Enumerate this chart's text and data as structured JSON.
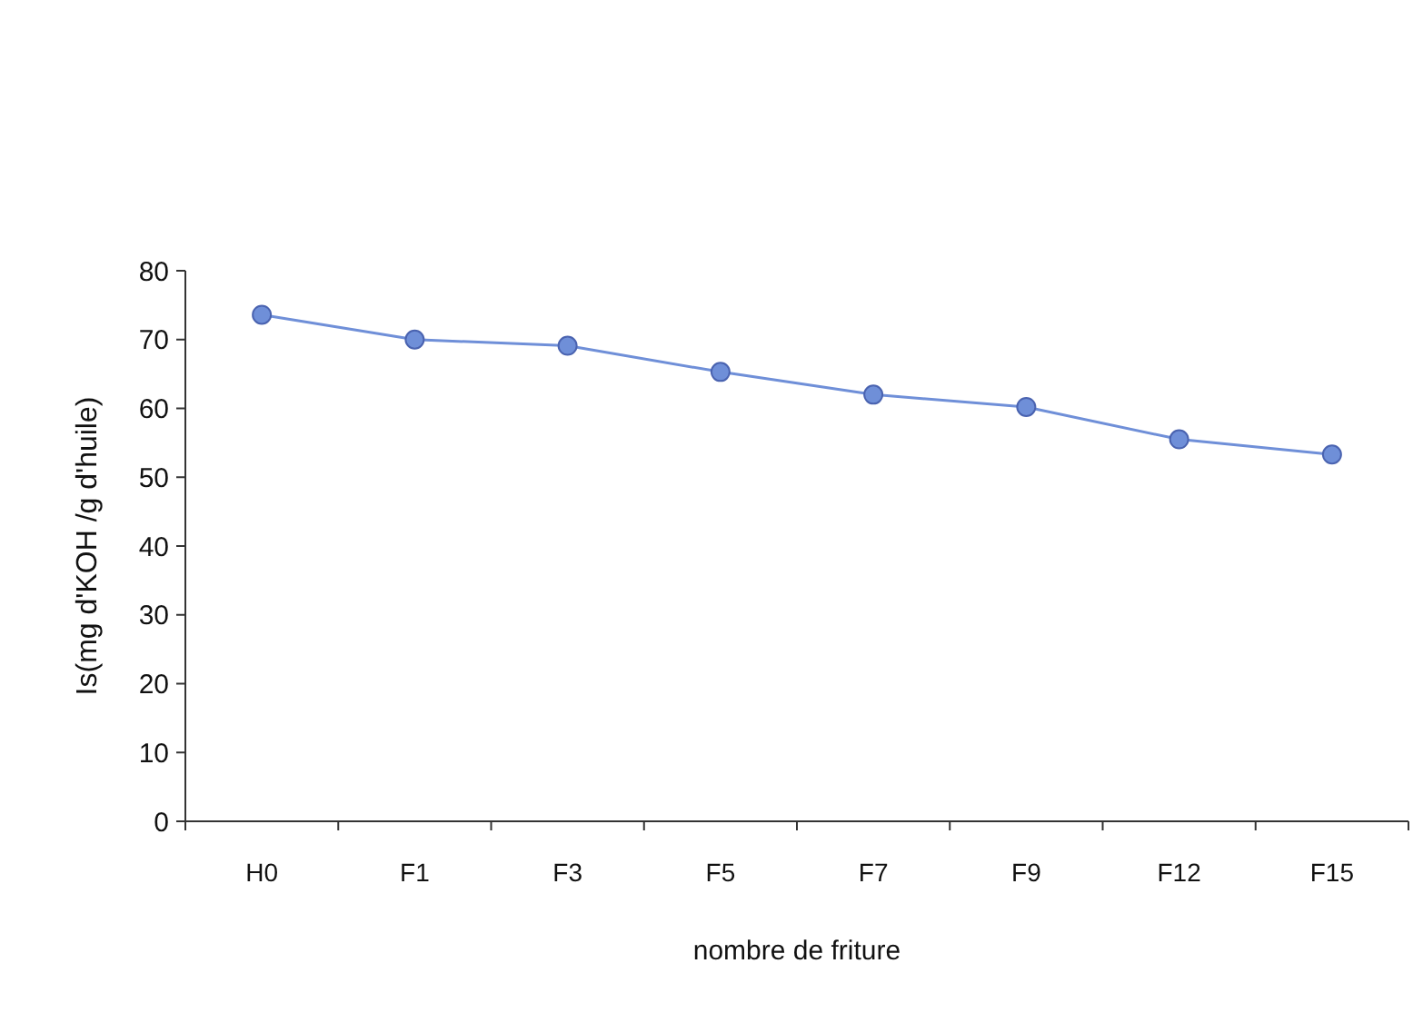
{
  "chart_data": {
    "type": "line",
    "xlabel": "nombre de friture",
    "ylabel": "Is(mg d'KOH /g d'huile)",
    "categories": [
      "H0",
      "F1",
      "F3",
      "F5",
      "F7",
      "F9",
      "F12",
      "F15"
    ],
    "series": [
      {
        "color": "#6f8fd8",
        "values": [
          73.6,
          70,
          69.1,
          65.3,
          62,
          60.2,
          55.5,
          53.3
        ]
      }
    ],
    "ylim": [
      0,
      80
    ],
    "yticks": [
      0,
      10,
      20,
      30,
      40,
      50,
      60,
      70,
      80
    ],
    "grid": false,
    "marker": "circle"
  }
}
